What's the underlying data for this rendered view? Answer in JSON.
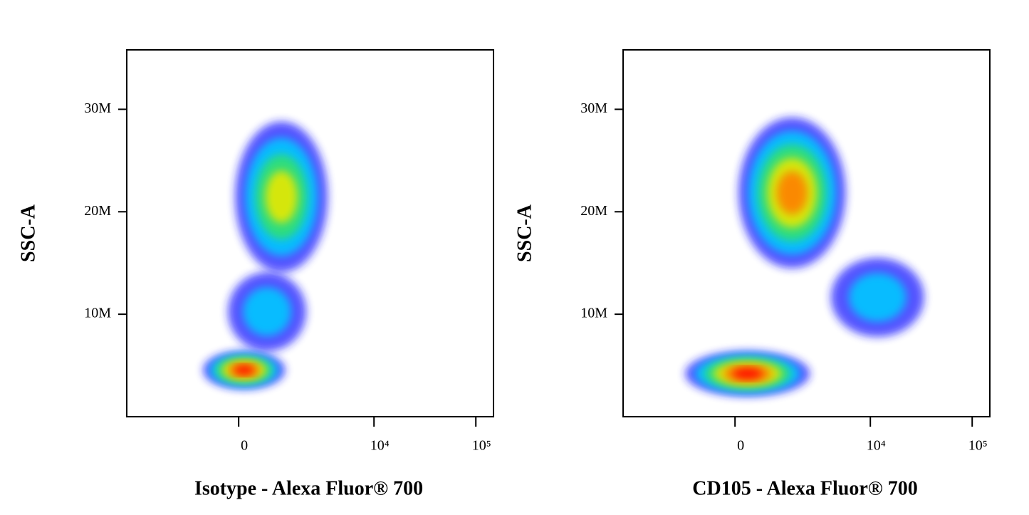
{
  "chart_data": [
    {
      "type": "scatter",
      "x_label": "Isotype - Alexa Fluor® 700",
      "y_label": "SSC-A",
      "xscale": "biexponential",
      "xlim": [
        -5870,
        149000
      ],
      "ylim": [
        0,
        35800000
      ],
      "xticks": [
        0,
        {
          "value": 10000,
          "label": "10⁴"
        },
        {
          "value": 100000,
          "label": "10⁵"
        }
      ],
      "yticks": [
        {
          "value": 10000000,
          "label": "10M"
        },
        {
          "value": 20000000,
          "label": "20M"
        },
        {
          "value": 30000000,
          "label": "30M"
        }
      ],
      "populations": [
        {
          "x_range": [
            -228,
            2060
          ],
          "y_range": [
            6400000,
            14100000
          ],
          "peak_color": "#00c8ff"
        },
        {
          "x_range": [
            -76,
            3460
          ],
          "y_range": [
            14100000,
            28800000
          ],
          "peak_color": "#e8e800"
        },
        {
          "x_range": [
            -842,
            1180
          ],
          "y_range": [
            2700000,
            6400000
          ],
          "peak_color": "#ff0000"
        }
      ]
    },
    {
      "type": "scatter",
      "x_label": "CD105 - Alexa Fluor® 700",
      "y_label": "SSC-A",
      "xscale": "biexponential",
      "xlim": [
        -5870,
        149000
      ],
      "ylim": [
        0,
        35800000
      ],
      "xticks": [
        0,
        {
          "value": 10000,
          "label": "10⁴"
        },
        {
          "value": 100000,
          "label": "10⁵"
        }
      ],
      "yticks": [
        {
          "value": 10000000,
          "label": "10M"
        },
        {
          "value": 20000000,
          "label": "20M"
        },
        {
          "value": 30000000,
          "label": "30M"
        }
      ],
      "populations": [
        {
          "x_range": [
            4070,
            33700
          ],
          "y_range": [
            7800000,
            15500000
          ],
          "peak_color": "#00c8ff"
        },
        {
          "x_range": [
            76,
            5700
          ],
          "y_range": [
            14500000,
            29200000
          ],
          "peak_color": "#ff8000"
        },
        {
          "x_range": [
            -1300,
            2470
          ],
          "y_range": [
            2000000,
            6400000
          ],
          "peak_color": "#ff0000"
        }
      ]
    }
  ]
}
